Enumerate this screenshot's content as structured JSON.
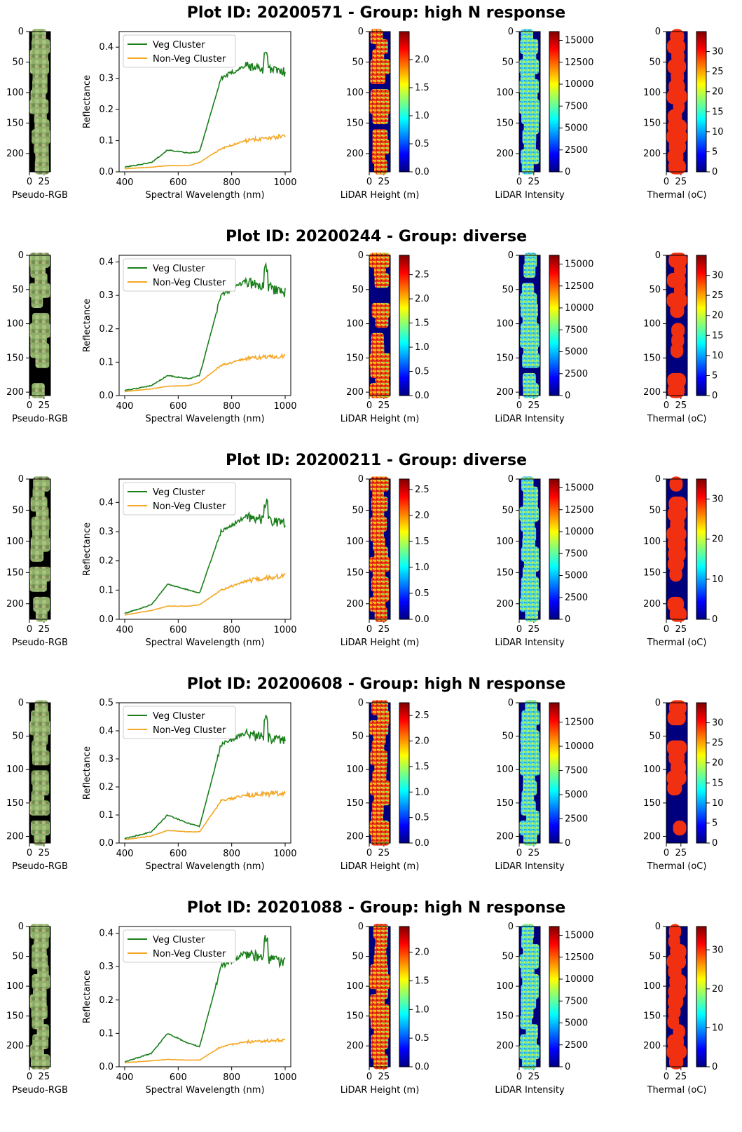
{
  "figure": {
    "panel_labels": {
      "rgb": "Pseudo-RGB",
      "spectrum_x": "Spectral Wavelength (nm)",
      "spectrum_y": "Reflectance",
      "height": "LiDAR Height (m)",
      "intensity": "LiDAR Intensity",
      "thermal": "Thermal (oC)"
    },
    "legend": [
      "Veg Cluster",
      "Non-Veg Cluster"
    ],
    "colors": {
      "veg": "#1a7f1a",
      "nonveg": "#f5a623"
    }
  },
  "chart_data": [
    {
      "type": "line",
      "title": "Plot ID: 20200571 - Group: high N response",
      "plot_id": "20200571",
      "group": "high N response",
      "xlabel": "Spectral Wavelength (nm)",
      "ylabel": "Reflectance",
      "xlim": [
        400,
        1000
      ],
      "ylim": [
        0,
        0.45
      ],
      "xticks": [
        400,
        600,
        800,
        1000
      ],
      "yticks": [
        0.0,
        0.1,
        0.2,
        0.3,
        0.4
      ],
      "series": [
        {
          "name": "Veg Cluster",
          "profile": [
            0.015,
            0.03,
            0.07,
            0.06,
            0.065,
            0.3,
            0.34,
            0.32
          ],
          "noise": 0.025
        },
        {
          "name": "Non-Veg Cluster",
          "profile": [
            0.01,
            0.015,
            0.02,
            0.02,
            0.03,
            0.075,
            0.1,
            0.115
          ],
          "noise": 0.01
        }
      ],
      "rgb_axis": {
        "ymax": 230,
        "yticks": [
          0,
          50,
          100,
          150,
          200
        ],
        "xticks": [
          0,
          25
        ],
        "canopy": 0.92
      },
      "height": {
        "cbar_ticks": [
          "0.0",
          "0.5",
          "1.0",
          "1.5",
          "2.0"
        ],
        "cbar_range": [
          0,
          2.5
        ],
        "fill": 0.9
      },
      "intensity": {
        "cbar_ticks": [
          "0",
          "2500",
          "5000",
          "7500",
          "10000",
          "12500",
          "15000"
        ],
        "cbar_range": [
          0,
          16000
        ],
        "fill": 0.85
      },
      "thermal": {
        "cbar_ticks": [
          "0",
          "5",
          "10",
          "15",
          "20",
          "25",
          "30"
        ],
        "cbar_range": [
          0,
          35
        ],
        "fill": 0.92
      }
    },
    {
      "type": "line",
      "title": "Plot ID: 20200244 - Group: diverse",
      "plot_id": "20200244",
      "group": "diverse",
      "xlabel": "Spectral Wavelength (nm)",
      "ylabel": "Reflectance",
      "xlim": [
        400,
        1000
      ],
      "ylim": [
        0,
        0.42
      ],
      "xticks": [
        400,
        600,
        800,
        1000
      ],
      "yticks": [
        0.0,
        0.1,
        0.2,
        0.3,
        0.4
      ],
      "series": [
        {
          "name": "Veg Cluster",
          "profile": [
            0.015,
            0.03,
            0.06,
            0.05,
            0.06,
            0.3,
            0.34,
            0.31
          ],
          "noise": 0.025
        },
        {
          "name": "Non-Veg Cluster",
          "profile": [
            0.012,
            0.02,
            0.028,
            0.03,
            0.04,
            0.09,
            0.11,
            0.12
          ],
          "noise": 0.01
        }
      ],
      "rgb_axis": {
        "ymax": 205,
        "yticks": [
          0,
          50,
          100,
          150,
          200
        ],
        "xticks": [
          0,
          25
        ],
        "canopy": 0.65
      },
      "height": {
        "cbar_ticks": [
          "0.0",
          "0.5",
          "1.0",
          "1.5",
          "2.0",
          "2.5"
        ],
        "cbar_range": [
          0,
          2.9
        ],
        "fill": 0.8
      },
      "intensity": {
        "cbar_ticks": [
          "0",
          "2500",
          "5000",
          "7500",
          "10000",
          "12500",
          "15000"
        ],
        "cbar_range": [
          0,
          16000
        ],
        "fill": 0.85
      },
      "thermal": {
        "cbar_ticks": [
          "0",
          "5",
          "10",
          "15",
          "20",
          "25",
          "30"
        ],
        "cbar_range": [
          0,
          35
        ],
        "fill": 0.7
      }
    },
    {
      "type": "line",
      "title": "Plot ID: 20200211 - Group: diverse",
      "plot_id": "20200211",
      "group": "diverse",
      "xlabel": "Spectral Wavelength (nm)",
      "ylabel": "Reflectance",
      "xlim": [
        400,
        1000
      ],
      "ylim": [
        0,
        0.48
      ],
      "xticks": [
        400,
        600,
        800,
        1000
      ],
      "yticks": [
        0.0,
        0.1,
        0.2,
        0.3,
        0.4
      ],
      "series": [
        {
          "name": "Veg Cluster",
          "profile": [
            0.02,
            0.05,
            0.12,
            0.1,
            0.09,
            0.3,
            0.35,
            0.33
          ],
          "noise": 0.025
        },
        {
          "name": "Non-Veg Cluster",
          "profile": [
            0.015,
            0.03,
            0.045,
            0.045,
            0.05,
            0.1,
            0.13,
            0.15
          ],
          "noise": 0.012
        }
      ],
      "rgb_axis": {
        "ymax": 225,
        "yticks": [
          0,
          50,
          100,
          150,
          200
        ],
        "xticks": [
          0,
          25
        ],
        "canopy": 0.85
      },
      "height": {
        "cbar_ticks": [
          "0.0",
          "0.5",
          "1.0",
          "1.5",
          "2.0",
          "2.5"
        ],
        "cbar_range": [
          0,
          2.7
        ],
        "fill": 0.8
      },
      "intensity": {
        "cbar_ticks": [
          "0",
          "2500",
          "5000",
          "7500",
          "10000",
          "12500",
          "15000"
        ],
        "cbar_range": [
          0,
          16000
        ],
        "fill": 0.85
      },
      "thermal": {
        "cbar_ticks": [
          "0",
          "10",
          "20",
          "30"
        ],
        "cbar_range": [
          0,
          35
        ],
        "fill": 0.75
      }
    },
    {
      "type": "line",
      "title": "Plot ID: 20200608 - Group: high N response",
      "plot_id": "20200608",
      "group": "high N response",
      "xlabel": "Spectral Wavelength (nm)",
      "ylabel": "Reflectance",
      "xlim": [
        400,
        1000
      ],
      "ylim": [
        0,
        0.5
      ],
      "xticks": [
        400,
        600,
        800,
        1000
      ],
      "yticks": [
        0.0,
        0.1,
        0.2,
        0.3,
        0.4,
        0.5
      ],
      "series": [
        {
          "name": "Veg Cluster",
          "profile": [
            0.015,
            0.04,
            0.1,
            0.07,
            0.06,
            0.35,
            0.39,
            0.36
          ],
          "noise": 0.03
        },
        {
          "name": "Non-Veg Cluster",
          "profile": [
            0.012,
            0.025,
            0.045,
            0.04,
            0.04,
            0.15,
            0.17,
            0.18
          ],
          "noise": 0.015
        }
      ],
      "rgb_axis": {
        "ymax": 210,
        "yticks": [
          0,
          50,
          100,
          150,
          200
        ],
        "xticks": [
          0,
          25
        ],
        "canopy": 0.88
      },
      "height": {
        "cbar_ticks": [
          "0.0",
          "0.5",
          "1.0",
          "1.5",
          "2.0",
          "2.5"
        ],
        "cbar_range": [
          0,
          2.75
        ],
        "fill": 0.9
      },
      "intensity": {
        "cbar_ticks": [
          "0",
          "2500",
          "5000",
          "7500",
          "10000",
          "12500"
        ],
        "cbar_range": [
          0,
          14500
        ],
        "fill": 0.9
      },
      "thermal": {
        "cbar_ticks": [
          "0",
          "5",
          "10",
          "15",
          "20",
          "25",
          "30"
        ],
        "cbar_range": [
          0,
          35
        ],
        "fill": 0.72
      }
    },
    {
      "type": "line",
      "title": "Plot ID: 20201088 - Group: high N response",
      "plot_id": "20201088",
      "group": "high N response",
      "xlabel": "Spectral Wavelength (nm)",
      "ylabel": "Reflectance",
      "xlim": [
        400,
        1000
      ],
      "ylim": [
        0,
        0.42
      ],
      "xticks": [
        400,
        600,
        800,
        1000
      ],
      "yticks": [
        0.0,
        0.1,
        0.2,
        0.3,
        0.4
      ],
      "series": [
        {
          "name": "Veg Cluster",
          "profile": [
            0.015,
            0.04,
            0.1,
            0.07,
            0.06,
            0.3,
            0.34,
            0.31
          ],
          "noise": 0.025
        },
        {
          "name": "Non-Veg Cluster",
          "profile": [
            0.012,
            0.018,
            0.022,
            0.02,
            0.02,
            0.06,
            0.075,
            0.08
          ],
          "noise": 0.008
        }
      ],
      "rgb_axis": {
        "ymax": 235,
        "yticks": [
          0,
          50,
          100,
          150,
          200
        ],
        "xticks": [
          0,
          25
        ],
        "canopy": 0.88
      },
      "height": {
        "cbar_ticks": [
          "0.0",
          "0.5",
          "1.0",
          "1.5",
          "2.0"
        ],
        "cbar_range": [
          0,
          2.45
        ],
        "fill": 0.85
      },
      "intensity": {
        "cbar_ticks": [
          "0",
          "2500",
          "5000",
          "7500",
          "10000",
          "12500",
          "15000"
        ],
        "cbar_range": [
          0,
          16000
        ],
        "fill": 0.85
      },
      "thermal": {
        "cbar_ticks": [
          "0",
          "10",
          "20",
          "30"
        ],
        "cbar_range": [
          0,
          36
        ],
        "fill": 0.75
      }
    }
  ]
}
